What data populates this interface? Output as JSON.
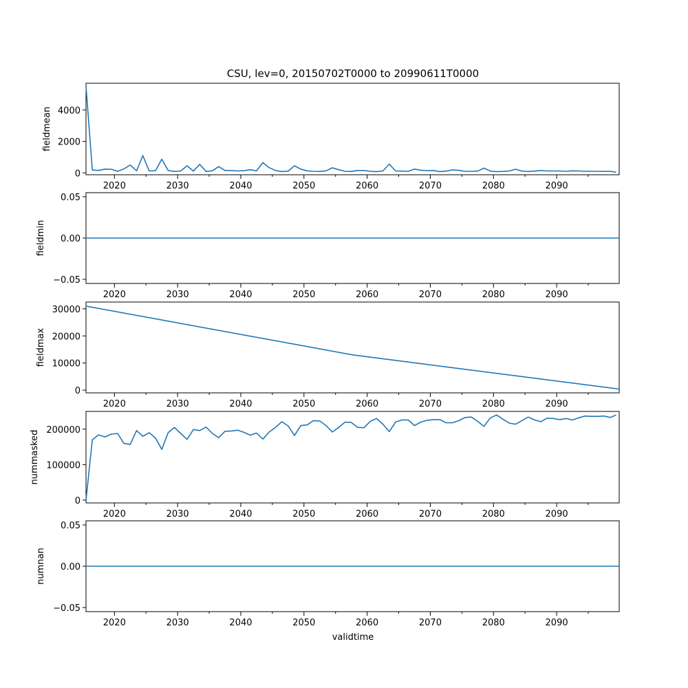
{
  "chart_data": {
    "type": "line",
    "title": "CSU, lev=0, 20150702T0000 to 20990611T0000",
    "xlabel": "validtime",
    "xlim": [
      2015.5,
      2099.9
    ],
    "x_major_ticks": [
      2020,
      2030,
      2040,
      2050,
      2060,
      2070,
      2080,
      2090
    ],
    "x_minor_ticks": [
      2025,
      2035,
      2045,
      2055,
      2065,
      2075,
      2085,
      2095
    ],
    "x_tick_labels": [
      "2020",
      "2030",
      "2040",
      "2050",
      "2060",
      "2070",
      "2080",
      "2090"
    ],
    "x": [
      2015.5,
      2016.5,
      2017.5,
      2018.5,
      2019.5,
      2020.5,
      2021.5,
      2022.5,
      2023.5,
      2024.5,
      2025.5,
      2026.5,
      2027.5,
      2028.5,
      2029.5,
      2030.5,
      2031.5,
      2032.5,
      2033.5,
      2034.5,
      2035.5,
      2036.5,
      2037.5,
      2038.5,
      2039.5,
      2040.5,
      2041.5,
      2042.5,
      2043.5,
      2044.5,
      2045.5,
      2046.5,
      2047.5,
      2048.5,
      2049.5,
      2050.5,
      2051.5,
      2052.5,
      2053.5,
      2054.5,
      2055.5,
      2056.5,
      2057.5,
      2058.5,
      2059.5,
      2060.5,
      2061.5,
      2062.5,
      2063.5,
      2064.5,
      2065.5,
      2066.5,
      2067.5,
      2068.5,
      2069.5,
      2070.5,
      2071.5,
      2072.5,
      2073.5,
      2074.5,
      2075.5,
      2076.5,
      2077.5,
      2078.5,
      2079.5,
      2080.5,
      2081.5,
      2082.5,
      2083.5,
      2084.5,
      2085.5,
      2086.5,
      2087.5,
      2088.5,
      2089.5,
      2090.5,
      2091.5,
      2092.5,
      2093.5,
      2094.5,
      2095.5,
      2096.5,
      2097.5,
      2098.5,
      2099.4
    ],
    "subplots": [
      {
        "ylabel": "fieldmean",
        "ylim": [
          -120,
          5700
        ],
        "yticks": [
          0,
          2000,
          4000
        ],
        "ytick_labels": [
          "0",
          "2000",
          "4000"
        ],
        "values": [
          5500,
          180,
          150,
          240,
          230,
          100,
          250,
          500,
          130,
          1100,
          120,
          140,
          870,
          150,
          90,
          120,
          450,
          110,
          540,
          90,
          130,
          400,
          150,
          150,
          120,
          140,
          200,
          130,
          650,
          330,
          150,
          80,
          110,
          450,
          240,
          130,
          100,
          90,
          130,
          320,
          200,
          100,
          90,
          150,
          150,
          100,
          80,
          120,
          560,
          120,
          110,
          100,
          240,
          170,
          140,
          150,
          80,
          110,
          190,
          160,
          100,
          100,
          110,
          300,
          110,
          80,
          90,
          120,
          230,
          110,
          90,
          110,
          150,
          120,
          120,
          120,
          100,
          130,
          120,
          100,
          100,
          100,
          90,
          100,
          40
        ]
      },
      {
        "ylabel": "fieldmin",
        "ylim": [
          -0.055,
          0.055
        ],
        "yticks": [
          -0.05,
          0.0,
          0.05
        ],
        "ytick_labels": [
          "−0.05",
          "0.00",
          "0.05"
        ],
        "values": [
          0,
          0
        ]
      },
      {
        "ylabel": "fieldmax",
        "ylim": [
          -1000,
          32500
        ],
        "yticks": [
          0,
          10000,
          20000,
          30000
        ],
        "ytick_labels": [
          "0",
          "10000",
          "20000",
          "30000"
        ],
        "values": [
          31000,
          13000,
          400
        ]
      },
      {
        "ylabel": "nummasked",
        "ylim": [
          -8000,
          250000
        ],
        "yticks": [
          0,
          100000,
          200000
        ],
        "ytick_labels": [
          "0",
          "100000",
          "200000"
        ],
        "values": [
          0,
          170000,
          184000,
          178000,
          186000,
          188000,
          160000,
          157000,
          196000,
          180000,
          190000,
          175000,
          143000,
          190000,
          205000,
          188000,
          171000,
          199000,
          196000,
          206000,
          188000,
          176000,
          194000,
          195000,
          197000,
          191000,
          183000,
          189000,
          172000,
          192000,
          205000,
          221000,
          209000,
          182000,
          210000,
          212000,
          224000,
          223000,
          210000,
          192000,
          205000,
          220000,
          219000,
          205000,
          204000,
          222000,
          230000,
          214000,
          193000,
          220000,
          226000,
          226000,
          210000,
          220000,
          225000,
          227000,
          227000,
          218000,
          218000,
          224000,
          233000,
          234000,
          222000,
          208000,
          232000,
          240000,
          228000,
          217000,
          214000,
          224000,
          234000,
          226000,
          221000,
          231000,
          230000,
          227000,
          230000,
          226000,
          232000,
          237000,
          236000,
          236000,
          237000,
          233000,
          240000
        ]
      },
      {
        "ylabel": "numnan",
        "ylim": [
          -0.055,
          0.055
        ],
        "yticks": [
          -0.05,
          0.0,
          0.05
        ],
        "ytick_labels": [
          "−0.05",
          "0.00",
          "0.05"
        ],
        "values": [
          0,
          0
        ]
      }
    ]
  }
}
